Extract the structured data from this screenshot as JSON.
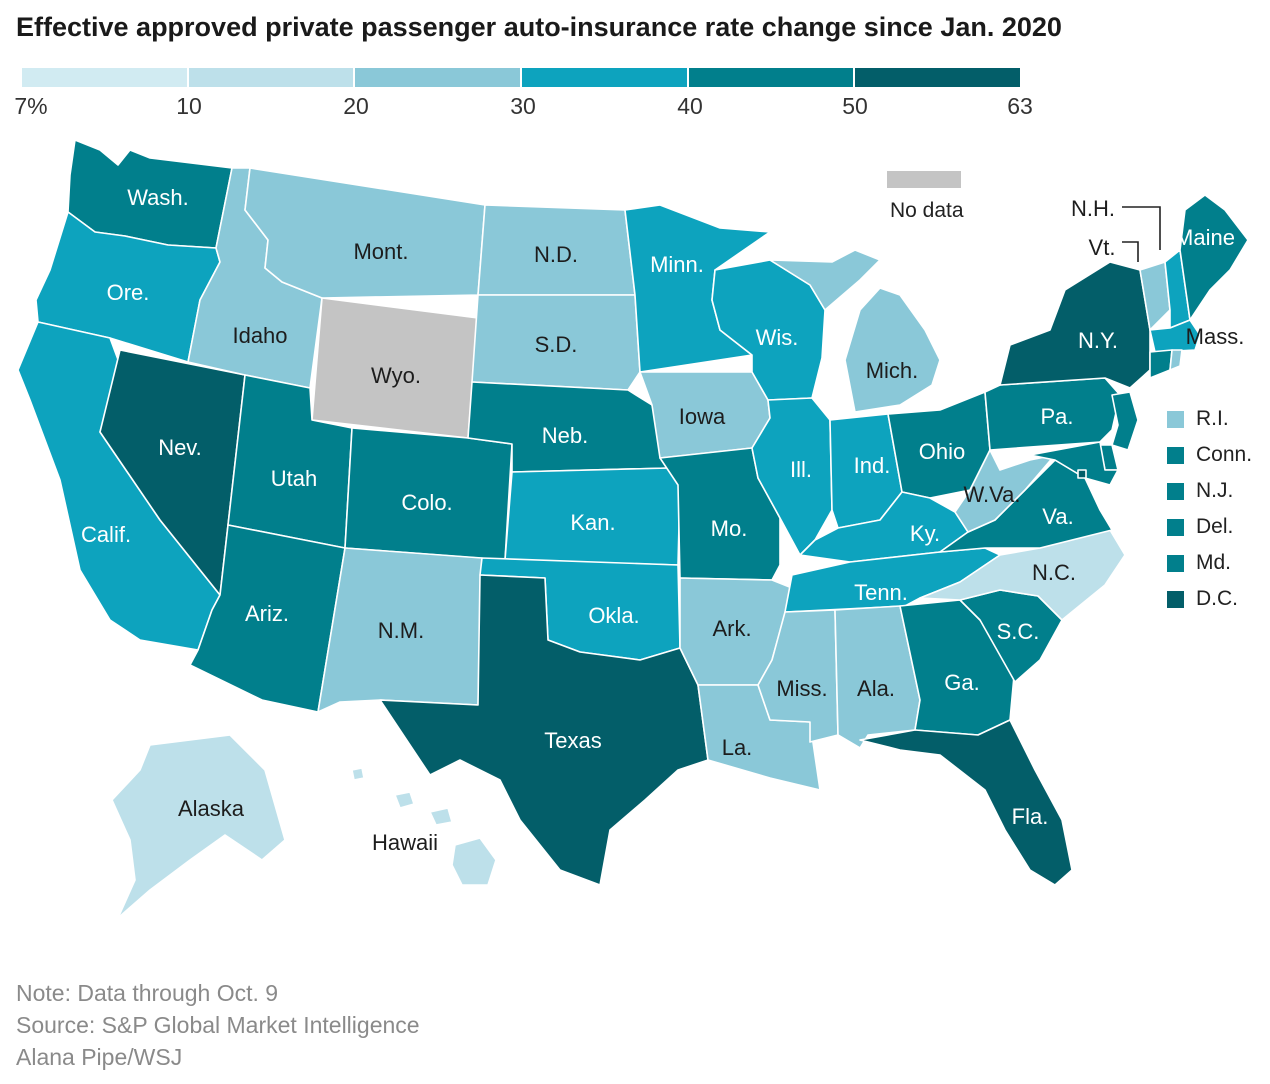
{
  "title": "Effective approved private passenger auto-insurance rate change since Jan. 2020",
  "legend": {
    "ticks": [
      "7%",
      "10",
      "20",
      "30",
      "40",
      "50",
      "63"
    ],
    "bins": [
      {
        "range": "7-10",
        "color": "#d1ebf2"
      },
      {
        "range": "10-20",
        "color": "#bde0ea"
      },
      {
        "range": "20-30",
        "color": "#8ac8d8"
      },
      {
        "range": "30-40",
        "color": "#0da3be"
      },
      {
        "range": "40-50",
        "color": "#017f8c"
      },
      {
        "range": "50-63",
        "color": "#035e69"
      }
    ],
    "no_data_label": "No data",
    "no_data_color": "#c4c4c4"
  },
  "states": [
    {
      "name": "Wash.",
      "bin": 4
    },
    {
      "name": "Ore.",
      "bin": 3
    },
    {
      "name": "Calif.",
      "bin": 3
    },
    {
      "name": "Nev.",
      "bin": 5
    },
    {
      "name": "Idaho",
      "bin": 2
    },
    {
      "name": "Mont.",
      "bin": 2
    },
    {
      "name": "Wyo.",
      "bin": -1
    },
    {
      "name": "Utah",
      "bin": 4
    },
    {
      "name": "Ariz.",
      "bin": 4
    },
    {
      "name": "Colo.",
      "bin": 4
    },
    {
      "name": "N.M.",
      "bin": 2
    },
    {
      "name": "N.D.",
      "bin": 2
    },
    {
      "name": "S.D.",
      "bin": 2
    },
    {
      "name": "Neb.",
      "bin": 4
    },
    {
      "name": "Kan.",
      "bin": 3
    },
    {
      "name": "Okla.",
      "bin": 3
    },
    {
      "name": "Texas",
      "bin": 5
    },
    {
      "name": "Minn.",
      "bin": 3
    },
    {
      "name": "Iowa",
      "bin": 2
    },
    {
      "name": "Mo.",
      "bin": 4
    },
    {
      "name": "Ark.",
      "bin": 2
    },
    {
      "name": "La.",
      "bin": 2
    },
    {
      "name": "Wis.",
      "bin": 3
    },
    {
      "name": "Ill.",
      "bin": 3
    },
    {
      "name": "Mich.",
      "bin": 2
    },
    {
      "name": "Ind.",
      "bin": 3
    },
    {
      "name": "Ohio",
      "bin": 4
    },
    {
      "name": "Ky.",
      "bin": 3
    },
    {
      "name": "Tenn.",
      "bin": 3
    },
    {
      "name": "Miss.",
      "bin": 2
    },
    {
      "name": "Ala.",
      "bin": 2
    },
    {
      "name": "Ga.",
      "bin": 4
    },
    {
      "name": "Fla.",
      "bin": 5
    },
    {
      "name": "S.C.",
      "bin": 4
    },
    {
      "name": "N.C.",
      "bin": 1
    },
    {
      "name": "Va.",
      "bin": 4
    },
    {
      "name": "W.Va.",
      "bin": 2
    },
    {
      "name": "Pa.",
      "bin": 4
    },
    {
      "name": "N.Y.",
      "bin": 5
    },
    {
      "name": "Vt.",
      "bin": 2
    },
    {
      "name": "N.H.",
      "bin": 3
    },
    {
      "name": "Maine",
      "bin": 4
    },
    {
      "name": "Mass.",
      "bin": 3
    },
    {
      "name": "Alaska",
      "bin": 1
    },
    {
      "name": "Hawaii",
      "bin": 1
    }
  ],
  "small_states": [
    {
      "name": "R.I.",
      "bin": 2
    },
    {
      "name": "Conn.",
      "bin": 4
    },
    {
      "name": "N.J.",
      "bin": 4
    },
    {
      "name": "Del.",
      "bin": 4
    },
    {
      "name": "Md.",
      "bin": 4
    },
    {
      "name": "D.C.",
      "bin": 5
    }
  ],
  "notes": [
    "Note: Data through Oct. 9",
    "Source: S&P Global Market Intelligence",
    "Alana Pipe/WSJ"
  ]
}
